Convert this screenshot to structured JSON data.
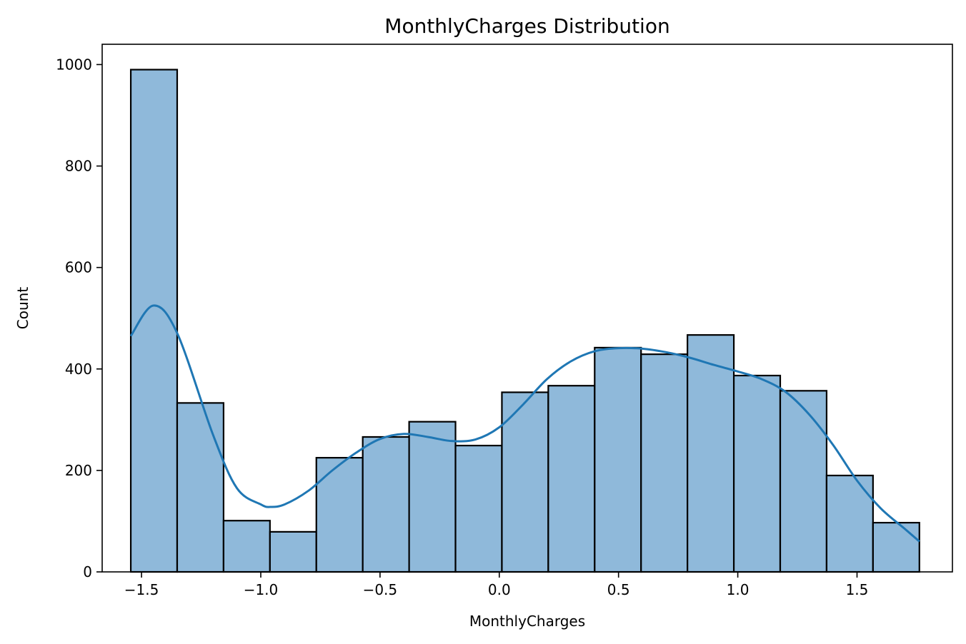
{
  "chart_data": {
    "type": "bar",
    "subtype": "histogram with kde",
    "title": "MonthlyCharges Distribution",
    "xlabel": "MonthlyCharges",
    "ylabel": "Count",
    "xlim": [
      -1.665,
      1.9
    ],
    "ylim": [
      0,
      1040
    ],
    "grid": false,
    "x_ticks": [
      {
        "value": -1.5,
        "label": "−1.5"
      },
      {
        "value": -1.0,
        "label": "−1.0"
      },
      {
        "value": -0.5,
        "label": "−0.5"
      },
      {
        "value": 0.0,
        "label": "0.0"
      },
      {
        "value": 0.5,
        "label": "0.5"
      },
      {
        "value": 1.0,
        "label": "1.0"
      },
      {
        "value": 1.5,
        "label": "1.5"
      }
    ],
    "y_ticks": [
      {
        "value": 0,
        "label": "0"
      },
      {
        "value": 200,
        "label": "200"
      },
      {
        "value": 400,
        "label": "400"
      },
      {
        "value": 600,
        "label": "600"
      },
      {
        "value": 800,
        "label": "800"
      },
      {
        "value": 1000,
        "label": "1000"
      }
    ],
    "bin_edges": [
      -1.545,
      -1.3505,
      -1.156,
      -0.9615,
      -0.767,
      -0.5725,
      -0.378,
      -0.1835,
      0.011,
      0.2055,
      0.4,
      0.5945,
      0.789,
      0.9835,
      1.178,
      1.3725,
      1.567,
      1.7615
    ],
    "counts": [
      990,
      333,
      101,
      79,
      225,
      266,
      296,
      249,
      354,
      367,
      442,
      429,
      467,
      387,
      357,
      190,
      97
    ],
    "kde": {
      "x": [
        -1.545,
        -1.45,
        -1.35,
        -1.2,
        -1.1,
        -1.0,
        -0.96,
        -0.9,
        -0.8,
        -0.7,
        -0.6,
        -0.5,
        -0.4,
        -0.3,
        -0.2,
        -0.1,
        0.0,
        0.1,
        0.2,
        0.3,
        0.4,
        0.5,
        0.6,
        0.7,
        0.8,
        0.9,
        1.0,
        1.1,
        1.2,
        1.3,
        1.4,
        1.5,
        1.6,
        1.7,
        1.7615
      ],
      "y": [
        465,
        525,
        470,
        270,
        165,
        133,
        128,
        133,
        160,
        200,
        235,
        262,
        272,
        266,
        258,
        261,
        285,
        330,
        380,
        415,
        435,
        441,
        440,
        433,
        422,
        408,
        395,
        380,
        355,
        310,
        250,
        180,
        125,
        85,
        60
      ]
    },
    "colors": {
      "bar_fill": "#8fb9da",
      "bar_edge": "#000000",
      "kde_line": "#1f77b4"
    }
  }
}
